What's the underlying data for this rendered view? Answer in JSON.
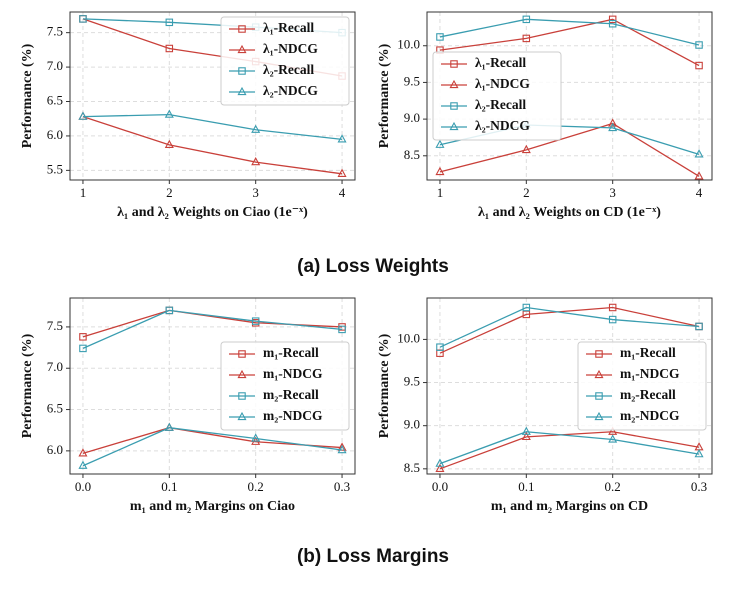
{
  "captions": [
    "(a) Loss Weights",
    "(b) Loss Margins"
  ],
  "chart_data": [
    {
      "type": "line",
      "xlabel": "λ₁ and λ₂ Weights on Ciao (1e⁻ˣ)",
      "ylabel": "Performance (%)",
      "x": [
        1,
        2,
        3,
        4
      ],
      "xlim": [
        0.85,
        4.15
      ],
      "xticks": [
        1,
        2,
        3,
        4
      ],
      "ylim": [
        5.36,
        7.8
      ],
      "yticks": [
        5.5,
        {
          "value": 6,
          "label": "6.0"
        },
        6.5,
        {
          "value": 7,
          "label": "7.0"
        },
        7.5
      ],
      "grid": true,
      "legend": "upper right",
      "series": [
        {
          "name": "λ₁-Recall",
          "color": "#c9403a",
          "marker": "square",
          "values": [
            7.7,
            7.27,
            7.08,
            6.87
          ]
        },
        {
          "name": "λ₁-NDCG",
          "color": "#c9403a",
          "marker": "triangle",
          "values": [
            6.28,
            5.87,
            5.62,
            5.45
          ]
        },
        {
          "name": "λ₂-Recall",
          "color": "#3a9db0",
          "marker": "square",
          "values": [
            7.7,
            7.65,
            7.58,
            7.5
          ]
        },
        {
          "name": "λ₂-NDCG",
          "color": "#3a9db0",
          "marker": "triangle",
          "values": [
            6.28,
            6.31,
            6.09,
            5.95
          ]
        }
      ]
    },
    {
      "type": "line",
      "xlabel": "λ₁ and λ₂ Weights on CD (1e⁻ˣ)",
      "ylabel": "Performance (%)",
      "x": [
        1,
        2,
        3,
        4
      ],
      "xlim": [
        0.85,
        4.15
      ],
      "xticks": [
        1,
        2,
        3,
        4
      ],
      "ylim": [
        8.17,
        10.46
      ],
      "yticks": [
        8.5,
        {
          "value": 9,
          "label": "9.0"
        },
        9.5,
        {
          "value": 10,
          "label": "10.0"
        }
      ],
      "grid": true,
      "legend": "center left",
      "series": [
        {
          "name": "λ₁-Recall",
          "color": "#c9403a",
          "marker": "square",
          "values": [
            9.94,
            10.1,
            10.36,
            9.73
          ]
        },
        {
          "name": "λ₁-NDCG",
          "color": "#c9403a",
          "marker": "triangle",
          "values": [
            8.28,
            8.58,
            8.94,
            8.22
          ]
        },
        {
          "name": "λ₂-Recall",
          "color": "#3a9db0",
          "marker": "square",
          "values": [
            10.12,
            10.36,
            10.3,
            10.01
          ]
        },
        {
          "name": "λ₂-NDCG",
          "color": "#3a9db0",
          "marker": "triangle",
          "values": [
            8.65,
            8.92,
            8.88,
            8.52
          ]
        }
      ]
    },
    {
      "type": "line",
      "xlabel": "m₁ and m₂ Margins on Ciao",
      "ylabel": "Performance (%)",
      "x": [
        0,
        0.1,
        0.2,
        0.3
      ],
      "xlim": [
        -0.015,
        0.315
      ],
      "xticks": [
        {
          "value": 0,
          "label": "0.0"
        },
        0.1,
        0.2,
        0.3
      ],
      "ylim": [
        5.72,
        7.85
      ],
      "yticks": [
        {
          "value": 6,
          "label": "6.0"
        },
        6.5,
        {
          "value": 7,
          "label": "7.0"
        },
        7.5
      ],
      "grid": true,
      "legend": "center right",
      "series": [
        {
          "name": "m₁-Recall",
          "color": "#c9403a",
          "marker": "square",
          "values": [
            7.38,
            7.7,
            7.55,
            7.5
          ]
        },
        {
          "name": "m₁-NDCG",
          "color": "#c9403a",
          "marker": "triangle",
          "values": [
            5.97,
            6.28,
            6.11,
            6.04
          ]
        },
        {
          "name": "m₂-Recall",
          "color": "#3a9db0",
          "marker": "square",
          "values": [
            7.24,
            7.7,
            7.57,
            7.47
          ]
        },
        {
          "name": "m₂-NDCG",
          "color": "#3a9db0",
          "marker": "triangle",
          "values": [
            5.82,
            6.28,
            6.15,
            6.01
          ]
        }
      ]
    },
    {
      "type": "line",
      "xlabel": "m₁ and m₂ Margins on CD",
      "ylabel": "Performance (%)",
      "x": [
        0,
        0.1,
        0.2,
        0.3
      ],
      "xlim": [
        -0.015,
        0.315
      ],
      "xticks": [
        {
          "value": 0,
          "label": "0.0"
        },
        0.1,
        0.2,
        0.3
      ],
      "ylim": [
        8.44,
        10.48
      ],
      "yticks": [
        8.5,
        {
          "value": 9,
          "label": "9.0"
        },
        9.5,
        {
          "value": 10,
          "label": "10.0"
        }
      ],
      "grid": true,
      "legend": "center right",
      "series": [
        {
          "name": "m₁-Recall",
          "color": "#c9403a",
          "marker": "square",
          "values": [
            9.84,
            10.29,
            10.37,
            10.15
          ]
        },
        {
          "name": "m₁-NDCG",
          "color": "#c9403a",
          "marker": "triangle",
          "values": [
            8.5,
            8.87,
            8.93,
            8.75
          ]
        },
        {
          "name": "m₂-Recall",
          "color": "#3a9db0",
          "marker": "square",
          "values": [
            9.91,
            10.37,
            10.23,
            10.15
          ]
        },
        {
          "name": "m₂-NDCG",
          "color": "#3a9db0",
          "marker": "triangle",
          "values": [
            8.56,
            8.93,
            8.84,
            8.67
          ]
        }
      ]
    }
  ]
}
